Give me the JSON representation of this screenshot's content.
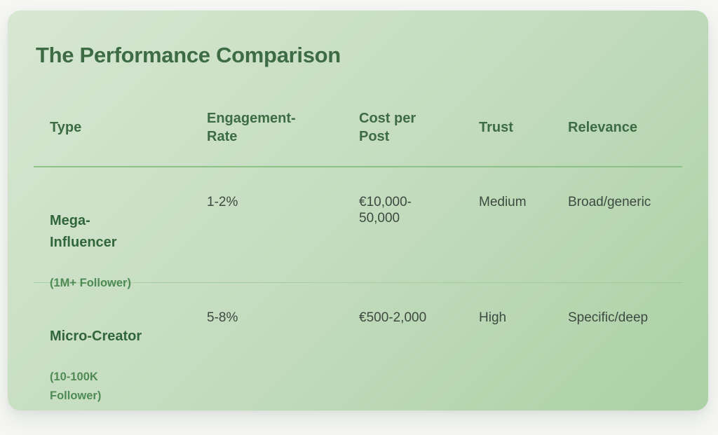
{
  "page": {
    "background_color": "#f6f7f5"
  },
  "card": {
    "title": "The Performance Comparison",
    "gradient_start_color": "#d6e7d2",
    "gradient_end_color": "#abd1a5",
    "heading_color": "#3d6b43",
    "divider_color": "#8cc286"
  },
  "table": {
    "columns": [
      {
        "label": "Type"
      },
      {
        "label": "Engagement-\nRate"
      },
      {
        "label": "Cost per\nPost"
      },
      {
        "label": "Trust"
      },
      {
        "label": "Relevance"
      }
    ],
    "rows": [
      {
        "type": "Mega-\nInfluencer",
        "type_sub": "(1M+ Follower)",
        "engagement_rate": "1-2%",
        "cost_per_post": "€10,000-\n50,000",
        "trust": "Medium",
        "relevance": "Broad/generic"
      },
      {
        "type": "Micro-Creator",
        "type_sub": "(10-100K\nFollower)",
        "engagement_rate": "5-8%",
        "cost_per_post": "€500-2,000",
        "trust": "High",
        "relevance": "Specific/deep"
      }
    ]
  },
  "chart_data": {
    "type": "table",
    "title": "The Performance Comparison",
    "columns": [
      "Type",
      "Engagement-Rate",
      "Cost per Post",
      "Trust",
      "Relevance"
    ],
    "rows": [
      [
        "Mega-Influencer (1M+ Follower)",
        "1-2%",
        "€10,000-50,000",
        "Medium",
        "Broad/generic"
      ],
      [
        "Micro-Creator (10-100K Follower)",
        "5-8%",
        "€500-2,000",
        "High",
        "Specific/deep"
      ]
    ]
  }
}
